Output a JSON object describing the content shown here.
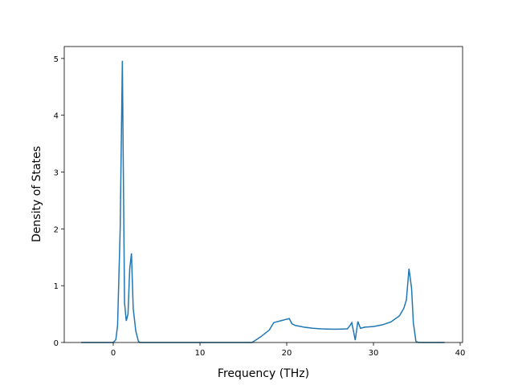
{
  "chart_data": {
    "type": "line",
    "x_label": "Frequency (THz)",
    "y_label": "Density of States",
    "xlim": [
      -5.65,
      40.28
    ],
    "ylim": [
      0,
      5.21
    ],
    "xticks": [
      0,
      10,
      20,
      30,
      40
    ],
    "yticks": [
      0,
      1,
      2,
      3,
      4,
      5
    ],
    "series": [
      {
        "color": "#1f77b4",
        "x": [
          -3.7,
          0,
          0.3,
          0.5,
          0.8,
          1.05,
          1.3,
          1.5,
          1.7,
          1.9,
          2.1,
          2.3,
          2.6,
          2.9,
          3.1,
          16,
          16.5,
          17,
          18,
          18.5,
          19.5,
          20,
          20.3,
          20.6,
          21,
          22,
          23,
          24,
          25,
          26,
          27,
          27.3,
          27.5,
          27.7,
          27.9,
          28.2,
          28.5,
          29,
          30,
          31,
          32,
          33,
          33.5,
          33.8,
          34.1,
          34.4,
          34.6,
          34.9,
          35.2,
          38.2
        ],
        "values": [
          0,
          0,
          0.05,
          0.3,
          2.0,
          4.96,
          0.7,
          0.38,
          0.5,
          1.3,
          1.57,
          0.6,
          0.2,
          0.02,
          0,
          0,
          0.05,
          0.1,
          0.22,
          0.35,
          0.39,
          0.41,
          0.42,
          0.33,
          0.3,
          0.27,
          0.25,
          0.24,
          0.235,
          0.235,
          0.24,
          0.3,
          0.35,
          0.2,
          0.04,
          0.37,
          0.25,
          0.27,
          0.28,
          0.31,
          0.36,
          0.47,
          0.6,
          0.75,
          1.3,
          0.95,
          0.35,
          0.02,
          0,
          0
        ]
      }
    ]
  }
}
